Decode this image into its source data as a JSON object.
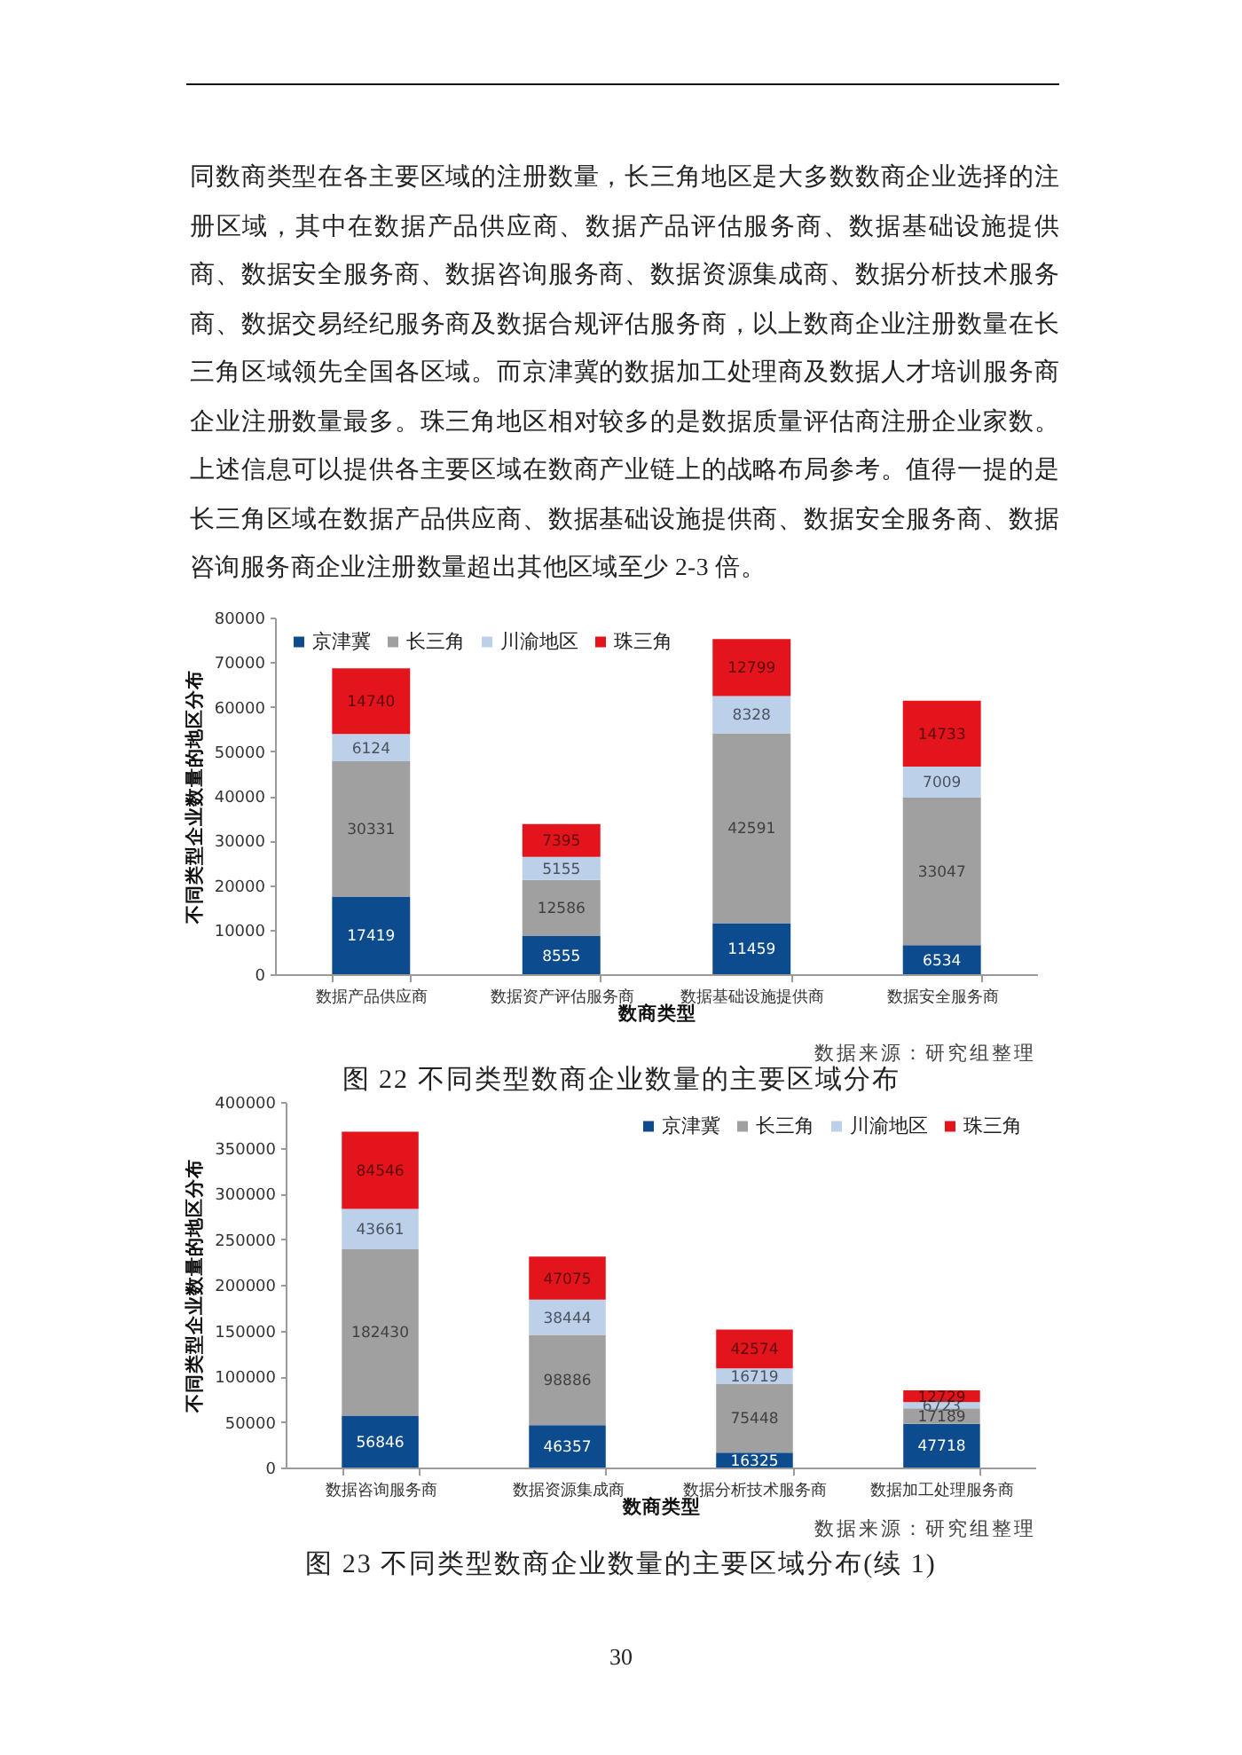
{
  "chart_data": [
    {
      "type": "other",
      "annotations": [
        "同数商类型在各主要区域的注册数量，长三角地区是大多数数商企业选择的注册区域，其中在数据产品供应商、数据产品评估服务商、数据基础设施提供商、数据安全服务商、数据咨询服务商、数据资源集成商、数据分析技术服务商、数据交易经纪服务商及数据合规评估服务商，以上数商企业注册数量在长三角区域领先全国各区域。而京津冀的数据加工处理商及数据人才培训服务商企业注册数量最多。珠三角地区相对较多的是数据质量评估商注册企业家数。上述信息可以提供各主要区域在数商产业链上的战略布局参考。值得一提的是长三角区域在数据产品供应商、数据基础设施提供商、数据安全服务商、数据咨询服务商企业注册数量超出其他区域至少 2-3 倍。"
      ]
    },
    {
      "type": "bar",
      "stacked": true,
      "title": "图 22 不同类型数商企业数量的主要区域分布",
      "xlabel": "数商类型",
      "ylabel": "不同类型企业数量的地区分布",
      "categories": [
        "数据产品供应商",
        "数据资产评估服务商",
        "数据基础设施提供商",
        "数据安全服务商"
      ],
      "series": [
        {
          "name": "京津冀",
          "color": "#0c4b8e",
          "values": [
            17419,
            8555,
            11459,
            6534
          ]
        },
        {
          "name": "长三角",
          "color": "#a0a0a0",
          "values": [
            30331,
            12586,
            42591,
            33047
          ]
        },
        {
          "name": "川渝地区",
          "color": "#bcd0ea",
          "values": [
            6124,
            5155,
            8328,
            7009
          ]
        },
        {
          "name": "珠三角",
          "color": "#e3141c",
          "values": [
            14740,
            7395,
            12799,
            14733
          ]
        }
      ],
      "ylim": [
        0,
        80000
      ],
      "yticks": [
        0,
        10000,
        20000,
        30000,
        40000,
        50000,
        60000,
        70000,
        80000
      ],
      "legend": "top left",
      "data_labels": true,
      "annotations": [
        "数据来源：研究组整理"
      ]
    },
    {
      "type": "bar",
      "stacked": true,
      "title": "图 23 不同类型数商企业数量的主要区域分布(续 1)",
      "xlabel": "数商类型",
      "ylabel": "不同类型企业数量的地区分布",
      "categories": [
        "数据咨询服务商",
        "数据资源集成商",
        "数据分析技术服务商",
        "数据加工处理服务商"
      ],
      "series": [
        {
          "name": "京津冀",
          "color": "#0c4b8e",
          "values": [
            56846,
            46357,
            16325,
            47718
          ]
        },
        {
          "name": "长三角",
          "color": "#a0a0a0",
          "values": [
            182430,
            98886,
            75448,
            17189
          ]
        },
        {
          "name": "川渝地区",
          "color": "#bcd0ea",
          "values": [
            43661,
            38444,
            16719,
            6723
          ]
        },
        {
          "name": "珠三角",
          "color": "#e3141c",
          "values": [
            84546,
            47075,
            42574,
            12729
          ]
        }
      ],
      "ylim": [
        0,
        400000
      ],
      "yticks": [
        0,
        50000,
        100000,
        150000,
        200000,
        250000,
        300000,
        350000,
        400000
      ],
      "legend": "top right",
      "data_labels": true,
      "annotations": [
        "数据来源：研究组整理"
      ]
    },
    {
      "type": "other",
      "annotations": [
        "30"
      ]
    }
  ]
}
